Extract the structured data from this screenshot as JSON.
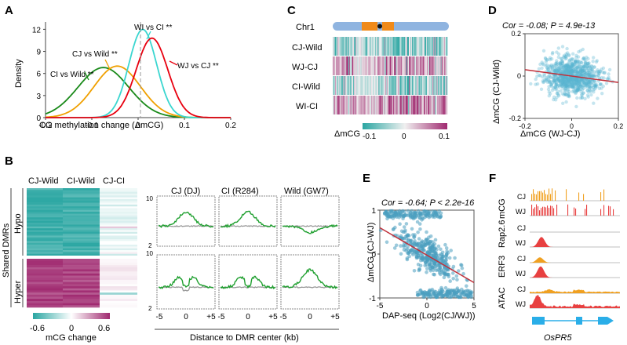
{
  "panel_letters": [
    "A",
    "B",
    "C",
    "D",
    "E",
    "F"
  ],
  "chart_data": [
    {
      "panel": "A",
      "type": "line",
      "xlabel": "CG methylation change (ΔmCG)",
      "ylabel": "Density",
      "xlim": [
        -0.2,
        0.2
      ],
      "ylim": [
        0,
        13
      ],
      "xticks": [
        "-0.2",
        "-0.1",
        "0",
        "0.1",
        "0.2"
      ],
      "yticks": [
        "0",
        "3",
        "6",
        "9",
        "12"
      ],
      "series": [
        {
          "name": "CI vs Wild **",
          "color": "#1a8a1a",
          "peak_x": -0.075,
          "peak_y": 6.8,
          "sd": 0.055
        },
        {
          "name": "CJ vs Wild **",
          "color": "#f0a000",
          "peak_x": -0.045,
          "peak_y": 7.0,
          "sd": 0.05
        },
        {
          "name": "WI vs CI **",
          "color": "#3ad6d0",
          "peak_x": 0.01,
          "peak_y": 12.0,
          "sd": 0.03
        },
        {
          "name": "WJ vs CJ **",
          "color": "#e8000f",
          "peak_x": 0.03,
          "peak_y": 10.8,
          "sd": 0.034
        }
      ]
    },
    {
      "panel": "B",
      "type": "heatmap",
      "columns": [
        "CJ-Wild",
        "CI-Wild",
        "CJ-CI"
      ],
      "group_label": "Shared DMRs",
      "rows": [
        "Hypo",
        "Hyper"
      ],
      "colorbar": {
        "label": "mCG change",
        "ticks": [
          "-0.6",
          "0",
          "0.6"
        ],
        "low": "#2aa6a2",
        "mid": "#ffffff",
        "high": "#a02a70"
      },
      "profile_plots": {
        "titles": [
          "CJ (DJ)",
          "CI (R284)",
          "Wild (GW7)"
        ],
        "xlabel": "Distance to DMR center (kb)",
        "xticks": [
          "-5",
          "0",
          "+5"
        ],
        "ytick_top": "10",
        "ytick_bottom": "2",
        "series_colors": [
          "#20a030",
          "#999999"
        ]
      }
    },
    {
      "panel": "C",
      "type": "heatmap",
      "chromosome": "Chr1",
      "rows": [
        "CJ-Wild",
        "WJ-CJ",
        "CI-Wild",
        "WI-CI"
      ],
      "colorbar": {
        "label": "ΔmCG",
        "ticks": [
          "-0.1",
          "0",
          "0.1"
        ],
        "low": "#2aa6a2",
        "mid": "#f0f0f0",
        "high": "#a02a70"
      }
    },
    {
      "panel": "D",
      "type": "scatter",
      "annotation": "Cor = -0.08; P = 4.9e-13",
      "xlabel": "ΔmCG (WJ-CJ)",
      "ylabel": "ΔmCG (CJ-Wild)",
      "xlim": [
        -0.2,
        0.2
      ],
      "ylim": [
        -0.2,
        0.2
      ],
      "xticks": [
        "-0.2",
        "0",
        "0.2"
      ],
      "yticks": [
        "-0.2",
        "0",
        "0.2"
      ],
      "point_color": "#5ab4d0",
      "trend_line": {
        "color": "#c0303a",
        "x": [
          -0.2,
          0.2
        ],
        "y": [
          0.03,
          -0.03
        ]
      }
    },
    {
      "panel": "E",
      "type": "scatter",
      "annotation": "Cor = -0.64; P < 2.2e-16",
      "xlabel": "DAP-seq (Log2(CJ/WJ))",
      "ylabel": "ΔmCG (CJ-WJ)",
      "xlim": [
        -5,
        5
      ],
      "ylim": [
        -1,
        1
      ],
      "xticks": [
        "-5",
        "0",
        "5"
      ],
      "yticks": [
        "-1",
        "0",
        "1"
      ],
      "point_color": "#4a9fc0",
      "trend_line": {
        "color": "#c0303a",
        "x": [
          -5,
          5
        ],
        "y": [
          0.6,
          -0.65
        ]
      }
    },
    {
      "panel": "F",
      "type": "area",
      "tracks": [
        {
          "group": "mCG",
          "rows": [
            {
              "label": "CJ",
              "color": "#f0a020"
            },
            {
              "label": "WJ",
              "color": "#e84040"
            }
          ]
        },
        {
          "group": "Rap2.6",
          "rows": [
            {
              "label": "CJ",
              "color": "#f0a020"
            },
            {
              "label": "WJ",
              "color": "#e84040"
            }
          ]
        },
        {
          "group": "ERF3",
          "rows": [
            {
              "label": "CJ",
              "color": "#f0a020"
            },
            {
              "label": "WJ",
              "color": "#e84040"
            }
          ]
        },
        {
          "group": "ATAC",
          "rows": [
            {
              "label": "CJ",
              "color": "#f0a020"
            },
            {
              "label": "WJ",
              "color": "#e84040"
            }
          ]
        }
      ],
      "gene": {
        "name": "OsPR5",
        "color": "#2aaee8"
      }
    }
  ]
}
